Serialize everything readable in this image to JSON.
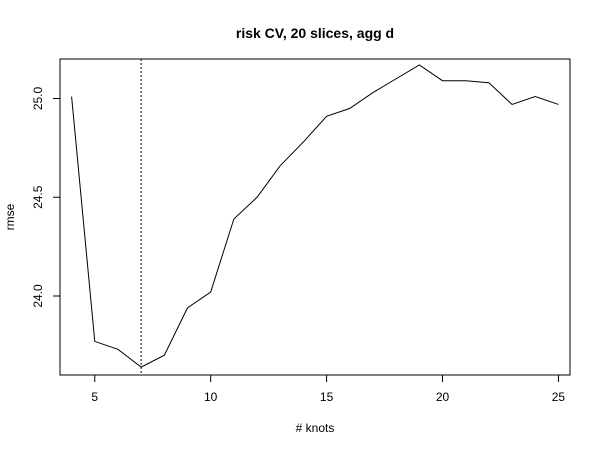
{
  "chart_data": {
    "type": "line",
    "title": "risk CV,  20 slices, agg d",
    "xlabel": "# knots",
    "ylabel": "rmse",
    "xlim": [
      3.5,
      25.5
    ],
    "ylim": [
      23.6,
      25.2
    ],
    "x_ticks": [
      5,
      10,
      15,
      20,
      25
    ],
    "y_ticks": [
      24.0,
      24.5,
      25.0
    ],
    "x_tick_labels": [
      "5",
      "10",
      "15",
      "20",
      "25"
    ],
    "y_tick_labels": [
      "24.0",
      "24.5",
      "25.0"
    ],
    "reference_line_x": 7,
    "x": [
      4,
      5,
      6,
      7,
      8,
      9,
      10,
      11,
      12,
      13,
      14,
      15,
      16,
      17,
      18,
      19,
      20,
      21,
      22,
      23,
      24,
      25
    ],
    "y": [
      25.01,
      23.77,
      23.73,
      23.64,
      23.7,
      23.94,
      24.02,
      24.39,
      24.5,
      24.66,
      24.78,
      24.91,
      24.95,
      25.03,
      25.1,
      25.17,
      25.09,
      25.09,
      25.08,
      24.97,
      25.01,
      24.97
    ],
    "grid": false,
    "legend": "none",
    "line_color": "#000000"
  }
}
